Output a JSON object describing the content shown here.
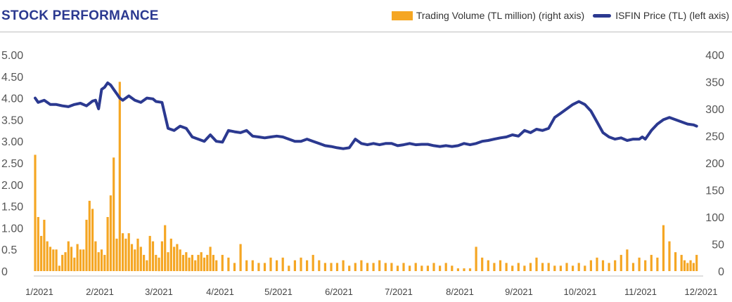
{
  "header": {
    "title": "STOCK PERFORMANCE"
  },
  "colors": {
    "accent": "#2b3990",
    "volume": "#f5a623",
    "rule": "#bfbfbf"
  },
  "chart_data": {
    "type": "bar+line",
    "title": "STOCK PERFORMANCE",
    "legend_position": "top-right",
    "grid": false,
    "x_tick_labels": [
      "1/2021",
      "2/2021",
      "3/2021",
      "4/2021",
      "5/2021",
      "6/2021",
      "7/2021",
      "8/2021",
      "9/2021",
      "10/2021",
      "11/2021",
      "12/2021"
    ],
    "y_left": {
      "ticks": [
        "5.00",
        "4.50",
        "4.00",
        "3.50",
        "3.00",
        "2.50",
        "2.00",
        "1.50",
        "1.00",
        "0.5",
        "0"
      ],
      "range": [
        0,
        5
      ]
    },
    "y_right": {
      "ticks": [
        "400",
        "350",
        "300",
        "250",
        "200",
        "150",
        "100",
        "50",
        "0"
      ],
      "range": [
        0,
        400
      ]
    },
    "series": [
      {
        "name": "Trading Volume (TL million) (right axis)",
        "type": "bar",
        "axis": "right",
        "color": "#f5a623",
        "x": [
          0.0,
          0.05,
          0.1,
          0.15,
          0.2,
          0.25,
          0.3,
          0.35,
          0.4,
          0.45,
          0.5,
          0.55,
          0.6,
          0.65,
          0.7,
          0.75,
          0.8,
          0.85,
          0.9,
          0.95,
          1.0,
          1.05,
          1.1,
          1.15,
          1.2,
          1.25,
          1.3,
          1.35,
          1.4,
          1.45,
          1.5,
          1.55,
          1.6,
          1.65,
          1.7,
          1.75,
          1.8,
          1.85,
          1.9,
          1.95,
          2.0,
          2.05,
          2.1,
          2.15,
          2.2,
          2.25,
          2.3,
          2.35,
          2.4,
          2.45,
          2.5,
          2.55,
          2.6,
          2.65,
          2.7,
          2.75,
          2.8,
          2.85,
          2.9,
          2.95,
          3.0,
          3.1,
          3.2,
          3.3,
          3.4,
          3.5,
          3.6,
          3.7,
          3.8,
          3.9,
          4.0,
          4.1,
          4.2,
          4.3,
          4.4,
          4.5,
          4.6,
          4.7,
          4.8,
          4.9,
          5.0,
          5.1,
          5.2,
          5.3,
          5.4,
          5.5,
          5.6,
          5.7,
          5.8,
          5.9,
          6.0,
          6.1,
          6.2,
          6.3,
          6.4,
          6.5,
          6.6,
          6.7,
          6.8,
          6.9,
          7.0,
          7.1,
          7.2,
          7.3,
          7.4,
          7.5,
          7.6,
          7.7,
          7.8,
          7.9,
          8.0,
          8.1,
          8.2,
          8.3,
          8.4,
          8.5,
          8.6,
          8.7,
          8.8,
          8.9,
          9.0,
          9.1,
          9.2,
          9.3,
          9.4,
          9.5,
          9.6,
          9.7,
          9.8,
          9.9,
          10.0,
          10.1,
          10.2,
          10.3,
          10.4,
          10.5,
          10.6,
          10.7,
          10.75,
          10.8,
          10.85,
          10.9,
          10.95
        ],
        "values": [
          215,
          100,
          65,
          95,
          55,
          45,
          40,
          40,
          10,
          30,
          35,
          55,
          45,
          25,
          50,
          40,
          40,
          95,
          130,
          115,
          55,
          35,
          40,
          30,
          100,
          140,
          210,
          60,
          350,
          70,
          60,
          70,
          50,
          40,
          60,
          45,
          30,
          20,
          65,
          55,
          30,
          25,
          55,
          85,
          35,
          60,
          45,
          50,
          40,
          30,
          35,
          25,
          30,
          20,
          30,
          35,
          25,
          30,
          45,
          30,
          20,
          30,
          25,
          15,
          50,
          20,
          20,
          15,
          15,
          25,
          20,
          25,
          10,
          20,
          25,
          20,
          30,
          20,
          15,
          15,
          15,
          20,
          10,
          15,
          20,
          15,
          15,
          20,
          15,
          15,
          10,
          15,
          10,
          15,
          10,
          10,
          15,
          10,
          15,
          10,
          5,
          5,
          5,
          45,
          25,
          20,
          15,
          20,
          15,
          10,
          15,
          10,
          15,
          25,
          15,
          15,
          10,
          10,
          15,
          10,
          15,
          10,
          20,
          25,
          20,
          15,
          20,
          30,
          40,
          15,
          25,
          20,
          30,
          25,
          85,
          55,
          35,
          30,
          20,
          15,
          20,
          15,
          30
        ]
      },
      {
        "name": "ISFIN Price (TL) (left axis)",
        "type": "line",
        "axis": "left",
        "color": "#2b3990",
        "x": [
          0.0,
          0.05,
          0.15,
          0.25,
          0.35,
          0.45,
          0.55,
          0.65,
          0.75,
          0.85,
          0.95,
          1.0,
          1.05,
          1.1,
          1.15,
          1.2,
          1.25,
          1.3,
          1.35,
          1.4,
          1.45,
          1.55,
          1.65,
          1.75,
          1.85,
          1.95,
          2.0,
          2.1,
          2.2,
          2.3,
          2.4,
          2.5,
          2.6,
          2.7,
          2.8,
          2.9,
          3.0,
          3.1,
          3.2,
          3.3,
          3.4,
          3.5,
          3.6,
          3.7,
          3.8,
          3.9,
          4.0,
          4.1,
          4.2,
          4.3,
          4.4,
          4.5,
          4.6,
          4.7,
          4.8,
          4.9,
          5.0,
          5.1,
          5.2,
          5.3,
          5.4,
          5.5,
          5.6,
          5.7,
          5.8,
          5.9,
          6.0,
          6.1,
          6.2,
          6.3,
          6.4,
          6.5,
          6.6,
          6.7,
          6.8,
          6.9,
          7.0,
          7.1,
          7.2,
          7.3,
          7.4,
          7.5,
          7.6,
          7.7,
          7.8,
          7.9,
          8.0,
          8.1,
          8.2,
          8.3,
          8.4,
          8.5,
          8.6,
          8.7,
          8.8,
          8.9,
          9.0,
          9.1,
          9.2,
          9.3,
          9.4,
          9.5,
          9.6,
          9.7,
          9.8,
          9.9,
          10.0,
          10.05,
          10.1,
          10.15,
          10.2,
          10.3,
          10.4,
          10.5,
          10.6,
          10.7,
          10.8,
          10.9,
          10.95
        ],
        "values": [
          4.0,
          3.9,
          3.95,
          3.85,
          3.85,
          3.82,
          3.8,
          3.85,
          3.88,
          3.82,
          3.93,
          3.95,
          3.75,
          4.2,
          4.25,
          4.35,
          4.3,
          4.2,
          4.1,
          4.0,
          3.95,
          4.05,
          3.95,
          3.9,
          4.0,
          3.98,
          3.92,
          3.9,
          3.3,
          3.25,
          3.35,
          3.3,
          3.1,
          3.05,
          3.0,
          3.15,
          3.0,
          2.98,
          3.25,
          3.22,
          3.2,
          3.25,
          3.12,
          3.1,
          3.08,
          3.1,
          3.12,
          3.1,
          3.05,
          3.0,
          3.0,
          3.05,
          3.0,
          2.95,
          2.9,
          2.88,
          2.85,
          2.83,
          2.85,
          3.05,
          2.95,
          2.92,
          2.95,
          2.92,
          2.95,
          2.95,
          2.9,
          2.92,
          2.95,
          2.92,
          2.93,
          2.93,
          2.9,
          2.88,
          2.9,
          2.88,
          2.9,
          2.95,
          2.92,
          2.95,
          3.0,
          3.02,
          3.05,
          3.08,
          3.1,
          3.15,
          3.12,
          3.25,
          3.2,
          3.28,
          3.25,
          3.3,
          3.55,
          3.65,
          3.75,
          3.85,
          3.92,
          3.85,
          3.7,
          3.45,
          3.2,
          3.1,
          3.05,
          3.08,
          3.02,
          3.05,
          3.05,
          3.1,
          3.05,
          3.15,
          3.25,
          3.4,
          3.5,
          3.55,
          3.5,
          3.45,
          3.4,
          3.38,
          3.35
        ]
      }
    ]
  }
}
